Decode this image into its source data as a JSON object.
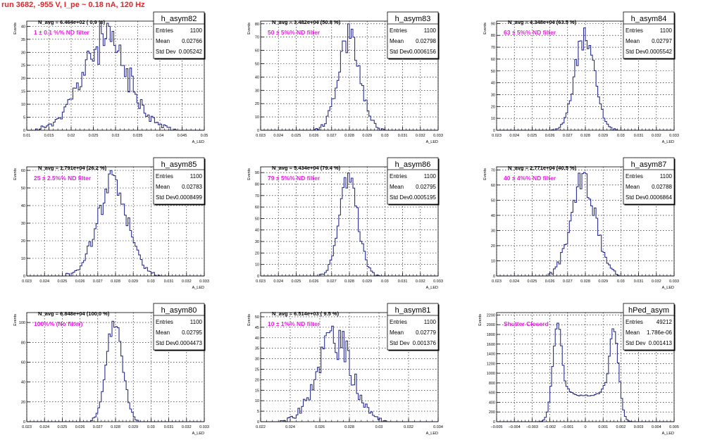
{
  "title": "run 3682,  -955 V, I_pe ~ 0.18 nA, 120 Hz",
  "stats_labels": {
    "entries": "Entries",
    "mean": "Mean",
    "std": "Std Dev"
  },
  "y_axis_label": "Events",
  "x_axis_label": "A_LED",
  "colors": {
    "histogram": "#2b2f8f",
    "title": "#e8232a",
    "annotation": "#e81ee0"
  },
  "chart_data": [
    {
      "type": "bar",
      "name": "h_asym82",
      "navg": "N_avg = 6.464e+02 ( 0.9 %)",
      "filter": "1 ± 0.1 %% ND filter",
      "entries": "1100",
      "mean": "0.02766",
      "std": "0.005242",
      "xlim": [
        0.01,
        0.05
      ],
      "xticks": [
        "0.01",
        "0.015",
        "0.02",
        "0.025",
        "0.03",
        "0.035",
        "0.04",
        "0.045",
        "0.05"
      ],
      "ylim": [
        0,
        42
      ],
      "yticks": [
        0,
        5,
        10,
        15,
        20,
        25,
        30,
        35,
        40
      ],
      "mu": 0.02766,
      "sigma": 0.005242,
      "peak": 34,
      "noise": 0.25,
      "seed": 11,
      "bins": 100,
      "shape": "gauss"
    },
    {
      "type": "bar",
      "name": "h_asym83",
      "navg": "N_avg = 3.482e+04 (50.8 %)",
      "filter": "50 ± 5%% ND filter",
      "entries": "1100",
      "mean": "0.02798",
      "std": "0.0006156",
      "xlim": [
        0.023,
        0.033
      ],
      "xticks": [
        "0.023",
        "0.024",
        "0.025",
        "0.026",
        "0.027",
        "0.028",
        "0.029",
        "0.03",
        "0.031",
        "0.032",
        "0.033"
      ],
      "ylim": [
        0,
        82
      ],
      "yticks": [
        0,
        10,
        20,
        30,
        40,
        50,
        60,
        70,
        80
      ],
      "mu": 0.02798,
      "sigma": 0.0006156,
      "peak": 68,
      "noise": 0.18,
      "seed": 23,
      "bins": 100,
      "shape": "gauss"
    },
    {
      "type": "bar",
      "name": "h_asym84",
      "navg": "N_avg = 4.348e+04 (63.5 %)",
      "filter": "63 ± 5%% ND filter",
      "entries": "1100",
      "mean": "0.02797",
      "std": "0.0005542",
      "xlim": [
        0.023,
        0.033
      ],
      "xticks": [
        "0.023",
        "0.024",
        "0.025",
        "0.026",
        "0.027",
        "0.028",
        "0.029",
        "0.03",
        "0.031",
        "0.032",
        "0.033"
      ],
      "ylim": [
        0,
        92
      ],
      "yticks": [
        0,
        10,
        20,
        30,
        40,
        50,
        60,
        70,
        80,
        90
      ],
      "mu": 0.02797,
      "sigma": 0.0005542,
      "peak": 80,
      "noise": 0.14,
      "seed": 37,
      "bins": 100,
      "shape": "gauss"
    },
    {
      "type": "bar",
      "name": "h_asym85",
      "navg": "N_avg = 1.791e+04 (26.2 %)",
      "filter": "25 ± 2.5%% ND filter",
      "entries": "1100",
      "mean": "0.02783",
      "std": "0.0008499",
      "xlim": [
        0.023,
        0.033
      ],
      "xticks": [
        "0.023",
        "0.024",
        "0.025",
        "0.026",
        "0.027",
        "0.028",
        "0.029",
        "0.03",
        "0.031",
        "0.032",
        "0.033"
      ],
      "ylim": [
        0,
        62
      ],
      "yticks": [
        0,
        10,
        20,
        30,
        40,
        50,
        60
      ],
      "mu": 0.02783,
      "sigma": 0.0008499,
      "peak": 52,
      "noise": 0.2,
      "seed": 41,
      "bins": 100,
      "shape": "gauss"
    },
    {
      "type": "bar",
      "name": "h_asym86",
      "navg": "N_avg = 5.434e+04 (79.4 %)",
      "filter": "79 ± 5%% ND filter",
      "entries": "1100",
      "mean": "0.02795",
      "std": "0.0005195",
      "xlim": [
        0.023,
        0.033
      ],
      "xticks": [
        "0.023",
        "0.024",
        "0.025",
        "0.026",
        "0.027",
        "0.028",
        "0.029",
        "0.03",
        "0.031",
        "0.032",
        "0.033"
      ],
      "ylim": [
        0,
        95
      ],
      "yticks": [
        0,
        10,
        20,
        30,
        40,
        50,
        60,
        70,
        80,
        90
      ],
      "mu": 0.02795,
      "sigma": 0.0005195,
      "peak": 85,
      "noise": 0.12,
      "seed": 53,
      "bins": 100,
      "shape": "gauss"
    },
    {
      "type": "bar",
      "name": "h_asym87",
      "navg": "N_avg = 2.771e+04 (40.5 %)",
      "filter": "40 ± 4%% ND filter",
      "entries": "1100",
      "mean": "0.02788",
      "std": "0.0006864",
      "xlim": [
        0.023,
        0.033
      ],
      "xticks": [
        "0.023",
        "0.024",
        "0.025",
        "0.026",
        "0.027",
        "0.028",
        "0.029",
        "0.03",
        "0.031",
        "0.032",
        "0.033"
      ],
      "ylim": [
        0,
        72
      ],
      "yticks": [
        0,
        10,
        20,
        30,
        40,
        50,
        60,
        70
      ],
      "mu": 0.02788,
      "sigma": 0.0006864,
      "peak": 64,
      "noise": 0.16,
      "seed": 67,
      "bins": 100,
      "shape": "gauss"
    },
    {
      "type": "bar",
      "name": "h_asym80",
      "navg": "N_avg = 6.848e+04 (100.0 %)",
      "filter": "100%% (No filter)",
      "entries": "1100",
      "mean": "0.02795",
      "std": "0.0004473",
      "xlim": [
        0.023,
        0.033
      ],
      "xticks": [
        "0.023",
        "0.024",
        "0.025",
        "0.026",
        "0.027",
        "0.028",
        "0.029",
        "0.03",
        "0.031",
        "0.032",
        "0.033"
      ],
      "ylim": [
        0,
        110
      ],
      "yticks": [
        0,
        20,
        40,
        60,
        80,
        100
      ],
      "mu": 0.02795,
      "sigma": 0.0004473,
      "peak": 102,
      "noise": 0.1,
      "seed": 71,
      "bins": 100,
      "shape": "gauss"
    },
    {
      "type": "bar",
      "name": "h_asym81",
      "navg": "N_avg = 6.514e+03 ( 9.5 %)",
      "filter": "10 ± 1%% ND filter",
      "entries": "1100",
      "mean": "0.02779",
      "std": "0.001376",
      "xlim": [
        0.022,
        0.036
      ],
      "xticks": [
        "0.022",
        "0.024",
        "0.026",
        "0.028",
        "0.03",
        "0.032",
        "0.034"
      ],
      "ylim": [
        0,
        52
      ],
      "yticks": [
        0,
        5,
        10,
        15,
        20,
        25,
        30,
        35,
        40,
        45,
        50
      ],
      "mu": 0.02779,
      "sigma": 0.001376,
      "peak": 40,
      "noise": 0.25,
      "seed": 83,
      "bins": 100,
      "shape": "gauss"
    },
    {
      "type": "bar",
      "name": "hPed_asym",
      "navg": "",
      "filter": "Shutter Closerd",
      "entries": "49212",
      "mean": "1.786e-06",
      "std": "0.001413",
      "xlim": [
        -0.005,
        0.005
      ],
      "xticks": [
        "−0.005",
        "−0.004",
        "−0.003",
        "−0.002",
        "−0.001",
        "0",
        "0.001",
        "0.002",
        "0.003",
        "0.004",
        "0.005"
      ],
      "ylim": [
        0,
        2250
      ],
      "yticks": [
        0,
        200,
        400,
        600,
        800,
        1000,
        1200,
        1400,
        1600,
        1800,
        2000,
        2200
      ],
      "mu": 0,
      "sigma": 0.001413,
      "peak": 2100,
      "noise": 0.05,
      "seed": 97,
      "bins": 100,
      "shape": "pedestal"
    }
  ]
}
